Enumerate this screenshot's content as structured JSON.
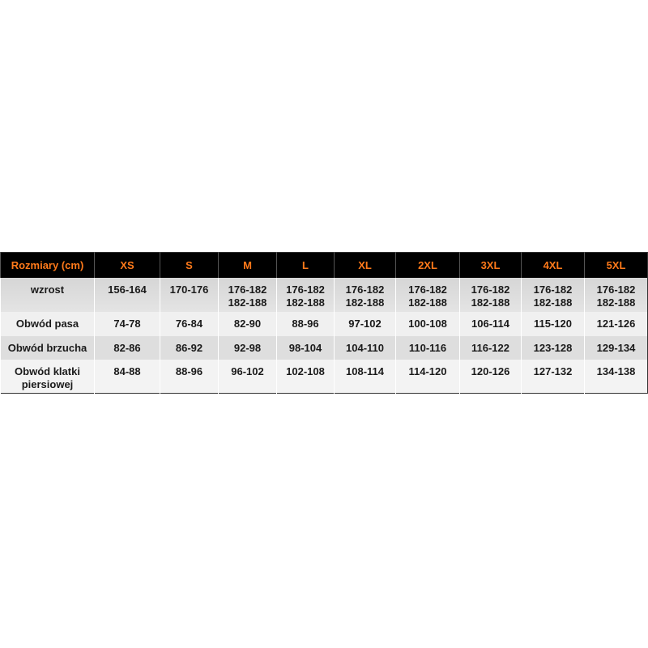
{
  "header": [
    "Rozmiary (cm)",
    "XS",
    "S",
    "M",
    "L",
    "XL",
    "2XL",
    "3XL",
    "4XL",
    "5XL"
  ],
  "rows": [
    {
      "label": "wzrost",
      "cells": [
        [
          "156-164"
        ],
        [
          "170-176"
        ],
        [
          "176-182",
          "182-188"
        ],
        [
          "176-182",
          "182-188"
        ],
        [
          "176-182",
          "182-188"
        ],
        [
          "176-182",
          "182-188"
        ],
        [
          "176-182",
          "182-188"
        ],
        [
          "176-182",
          "182-188"
        ],
        [
          "176-182",
          "182-188"
        ]
      ]
    },
    {
      "label": "Obwód pasa",
      "cells": [
        [
          "74-78"
        ],
        [
          "76-84"
        ],
        [
          "82-90"
        ],
        [
          "88-96"
        ],
        [
          "97-102"
        ],
        [
          "100-108"
        ],
        [
          "106-114"
        ],
        [
          "115-120"
        ],
        [
          "121-126"
        ]
      ]
    },
    {
      "label": "Obwód brzucha",
      "cells": [
        [
          "82-86"
        ],
        [
          "86-92"
        ],
        [
          "92-98"
        ],
        [
          "98-104"
        ],
        [
          "104-110"
        ],
        [
          "110-116"
        ],
        [
          "116-122"
        ],
        [
          "123-128"
        ],
        [
          "129-134"
        ]
      ]
    },
    {
      "label": "Obwód klatki piersiowej",
      "label_lines": [
        "Obwód klatki",
        "piersiowej"
      ],
      "cells": [
        [
          "84-88"
        ],
        [
          "88-96"
        ],
        [
          "96-102"
        ],
        [
          "102-108"
        ],
        [
          "108-114"
        ],
        [
          "114-120"
        ],
        [
          "120-126"
        ],
        [
          "127-132"
        ],
        [
          "134-138"
        ]
      ]
    }
  ],
  "colors": {
    "header_bg": "#000000",
    "header_text": "#ff7a1a"
  }
}
